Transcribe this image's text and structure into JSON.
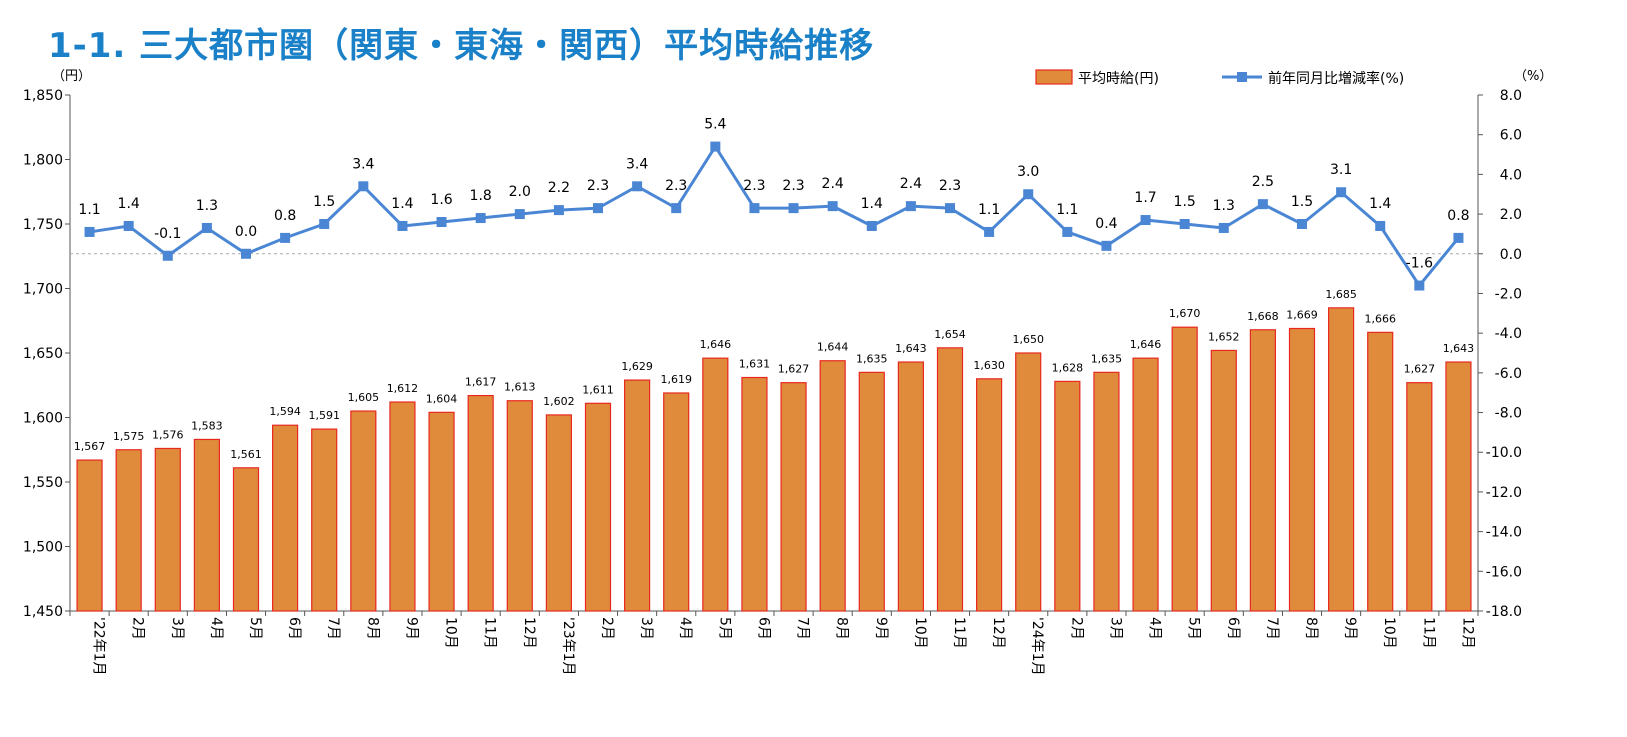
{
  "title": "1-1. 三大都市圏（関東・東海・関西）平均時給推移",
  "chart_data": {
    "type": "bar+line",
    "categories": [
      "'22年1月",
      "2月",
      "3月",
      "4月",
      "5月",
      "6月",
      "7月",
      "8月",
      "9月",
      "10月",
      "11月",
      "12月",
      "'23年1月",
      "2月",
      "3月",
      "4月",
      "5月",
      "6月",
      "7月",
      "8月",
      "9月",
      "10月",
      "11月",
      "12月",
      "'24年1月",
      "2月",
      "3月",
      "4月",
      "5月",
      "6月",
      "7月",
      "8月",
      "9月",
      "10月",
      "11月",
      "12月"
    ],
    "y_left": {
      "unit_label": "（円）",
      "ylim": [
        1450,
        1850
      ],
      "ticks": [
        1450,
        1500,
        1550,
        1600,
        1650,
        1700,
        1750,
        1800,
        1850
      ],
      "tick_labels": [
        "1,450",
        "1,500",
        "1,550",
        "1,600",
        "1,650",
        "1,700",
        "1,750",
        "1,800",
        "1,850"
      ]
    },
    "y_right": {
      "unit_label": "（%）",
      "ylim": [
        -18,
        8
      ],
      "ticks": [
        -18,
        -16,
        -14,
        -12,
        -10,
        -8,
        -6,
        -4,
        -2,
        0,
        2,
        4,
        6,
        8
      ],
      "tick_labels": [
        "-18.0",
        "-16.0",
        "-14.0",
        "-12.0",
        "-10.0",
        "-8.0",
        "-6.0",
        "-4.0",
        "-2.0",
        "0.0",
        "2.0",
        "4.0",
        "6.0",
        "8.0"
      ]
    },
    "series": [
      {
        "name": "平均時給(円)",
        "type": "bar",
        "axis": "left",
        "color": "#e08a3c",
        "edge_color": "#e8281f",
        "values": [
          1567,
          1575,
          1576,
          1583,
          1561,
          1594,
          1591,
          1605,
          1612,
          1604,
          1617,
          1613,
          1602,
          1611,
          1629,
          1619,
          1646,
          1631,
          1627,
          1644,
          1635,
          1643,
          1654,
          1630,
          1650,
          1628,
          1635,
          1646,
          1670,
          1652,
          1668,
          1669,
          1685,
          1666,
          1627,
          1643
        ],
        "labels": [
          "1,567",
          "1,575",
          "1,576",
          "1,583",
          "1,561",
          "1,594",
          "1,591",
          "1,605",
          "1,612",
          "1,604",
          "1,617",
          "1,613",
          "1,602",
          "1,611",
          "1,629",
          "1,619",
          "1,646",
          "1,631",
          "1,627",
          "1,644",
          "1,635",
          "1,643",
          "1,654",
          "1,630",
          "1,650",
          "1,628",
          "1,635",
          "1,646",
          "1,670",
          "1,652",
          "1,668",
          "1,669",
          "1,685",
          "1,666",
          "1,627",
          "1,643"
        ]
      },
      {
        "name": "前年同月比増減率(%)",
        "type": "line",
        "axis": "right",
        "color": "#4a86d4",
        "values": [
          1.1,
          1.4,
          -0.1,
          1.3,
          0.0,
          0.8,
          1.5,
          3.4,
          1.4,
          1.6,
          1.8,
          2.0,
          2.2,
          2.3,
          3.4,
          2.3,
          5.4,
          2.3,
          2.3,
          2.4,
          1.4,
          2.4,
          2.3,
          1.1,
          3.0,
          1.1,
          0.4,
          1.7,
          1.5,
          1.3,
          2.5,
          1.5,
          3.1,
          1.4,
          -1.6,
          0.8
        ],
        "labels": [
          "1.1",
          "1.4",
          "-0.1",
          "1.3",
          "0.0",
          "0.8",
          "1.5",
          "3.4",
          "1.4",
          "1.6",
          "1.8",
          "2.0",
          "2.2",
          "2.3",
          "3.4",
          "2.3",
          "5.4",
          "2.3",
          "2.3",
          "2.4",
          "1.4",
          "2.4",
          "2.3",
          "1.1",
          "3.0",
          "1.1",
          "0.4",
          "1.7",
          "1.5",
          "1.3",
          "2.5",
          "1.5",
          "3.1",
          "1.4",
          "-1.6",
          "0.8"
        ]
      }
    ],
    "legend": "top-right",
    "grid": false
  }
}
